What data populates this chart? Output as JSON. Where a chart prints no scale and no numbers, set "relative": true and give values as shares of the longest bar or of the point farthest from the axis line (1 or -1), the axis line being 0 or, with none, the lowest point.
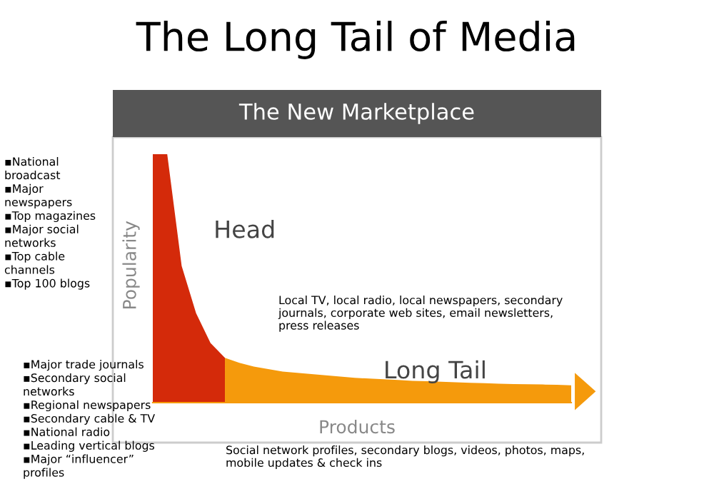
{
  "chart_data": {
    "type": "area",
    "relative": true,
    "title": "The Long Tail of Media",
    "subtitle": "The New Marketplace",
    "xlabel": "Products",
    "ylabel": "Popularity",
    "grid": false,
    "legend": false,
    "categories": [
      null,
      null,
      null,
      null,
      null,
      null,
      null,
      null,
      null,
      null,
      null,
      null,
      null,
      null,
      null,
      null,
      null,
      null,
      null,
      null,
      null,
      null,
      null,
      null,
      null,
      null,
      null,
      null,
      null,
      null
    ],
    "series": [
      {
        "name": "Head",
        "color": "#d42a0a",
        "values": [
          1,
          1,
          0.55,
          0.36,
          0.24,
          0.18,
          null,
          null,
          null,
          null,
          null,
          null,
          null,
          null,
          null,
          null,
          null,
          null,
          null,
          null,
          null,
          null,
          null,
          null,
          null,
          null,
          null,
          null,
          null,
          null
        ]
      },
      {
        "name": "Long Tail",
        "color": "#f59a0c",
        "values": [
          null,
          null,
          null,
          null,
          null,
          0.18,
          0.16,
          0.145,
          0.135,
          0.125,
          0.12,
          0.115,
          0.11,
          0.105,
          0.1,
          0.097,
          0.094,
          0.091,
          0.088,
          0.086,
          0.084,
          0.082,
          0.08,
          0.078,
          0.076,
          0.075,
          0.074,
          0.073,
          0.072,
          0.07
        ]
      }
    ],
    "annotations": [
      "▪National\nbroadcast\n▪Major\nnewspapers\n▪Top magazines\n▪Major social\nnetworks\n▪Top cable\nchannels\n▪Top 100 blogs",
      "▪Major trade journals\n▪Secondary social\nnetworks\n▪Regional newspapers\n▪Secondary cable & TV\n▪National radio\n▪Leading vertical blogs\n▪Major “influencer”\nprofiles",
      "Local TV, local radio, local newspapers, secondary\njournals, corporate web sites, email newsletters,\npress releases",
      "Social network profiles, secondary blogs, videos, photos, maps,\nmobile updates & check ins"
    ]
  }
}
